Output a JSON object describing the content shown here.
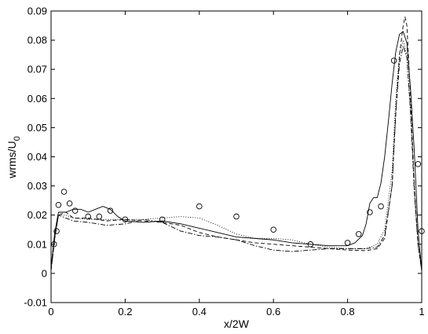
{
  "chart_data": {
    "type": "line",
    "xlabel": "x/2W",
    "ylabel": {
      "main": "wrms/U",
      "subscript": "0"
    },
    "xlim": [
      0,
      1
    ],
    "ylim": [
      -0.01,
      0.09
    ],
    "xticks": [
      0,
      0.2,
      0.4,
      0.6,
      0.8,
      1
    ],
    "xtick_labels": [
      "0",
      "0.2",
      "0.4",
      "0.6",
      "0.8",
      "1"
    ],
    "yticks": [
      -0.01,
      0,
      0.01,
      0.02,
      0.03,
      0.04,
      0.05,
      0.06,
      0.07,
      0.08,
      0.09
    ],
    "ytick_labels": [
      "-0.01",
      "0",
      "0.01",
      "0.02",
      "0.03",
      "0.04",
      "0.05",
      "0.06",
      "0.07",
      "0.08",
      "0.09"
    ],
    "grid": false,
    "legend": "none",
    "series": [
      {
        "style": "solid",
        "x": [
          0,
          0.01,
          0.02,
          0.04,
          0.06,
          0.08,
          0.1,
          0.12,
          0.14,
          0.16,
          0.18,
          0.2,
          0.25,
          0.3,
          0.35,
          0.4,
          0.45,
          0.5,
          0.55,
          0.6,
          0.65,
          0.7,
          0.75,
          0.8,
          0.82,
          0.84,
          0.85,
          0.86,
          0.87,
          0.88,
          0.89,
          0.9,
          0.91,
          0.92,
          0.93,
          0.94,
          0.95,
          0.96,
          0.97,
          0.98,
          0.99,
          1.0
        ],
        "y": [
          0.002,
          0.014,
          0.021,
          0.021,
          0.022,
          0.022,
          0.021,
          0.022,
          0.023,
          0.022,
          0.0195,
          0.018,
          0.0175,
          0.018,
          0.017,
          0.0155,
          0.014,
          0.0125,
          0.012,
          0.0115,
          0.0105,
          0.01,
          0.0095,
          0.0095,
          0.0105,
          0.013,
          0.017,
          0.024,
          0.026,
          0.026,
          0.031,
          0.04,
          0.052,
          0.065,
          0.076,
          0.082,
          0.083,
          0.079,
          0.063,
          0.042,
          0.015,
          0.001
        ]
      },
      {
        "style": "dotted",
        "x": [
          0,
          0.01,
          0.02,
          0.04,
          0.06,
          0.1,
          0.15,
          0.2,
          0.25,
          0.3,
          0.35,
          0.4,
          0.45,
          0.5,
          0.55,
          0.6,
          0.65,
          0.7,
          0.75,
          0.8,
          0.85,
          0.88,
          0.9,
          0.92,
          0.93,
          0.94,
          0.95,
          0.96,
          0.97,
          0.98,
          0.99,
          1.0
        ],
        "y": [
          0.001,
          0.013,
          0.02,
          0.02,
          0.019,
          0.0185,
          0.0185,
          0.0185,
          0.0185,
          0.019,
          0.0195,
          0.019,
          0.0165,
          0.0135,
          0.012,
          0.012,
          0.0115,
          0.01,
          0.009,
          0.0085,
          0.0085,
          0.01,
          0.015,
          0.035,
          0.06,
          0.075,
          0.08,
          0.075,
          0.055,
          0.03,
          0.01,
          0.001
        ]
      },
      {
        "style": "dashed",
        "x": [
          0,
          0.01,
          0.02,
          0.04,
          0.06,
          0.1,
          0.15,
          0.2,
          0.25,
          0.3,
          0.35,
          0.4,
          0.45,
          0.5,
          0.55,
          0.6,
          0.65,
          0.7,
          0.75,
          0.8,
          0.85,
          0.88,
          0.9,
          0.92,
          0.93,
          0.94,
          0.95,
          0.955,
          0.96,
          0.97,
          0.98,
          0.99,
          1.0
        ],
        "y": [
          0.001,
          0.012,
          0.02,
          0.021,
          0.019,
          0.019,
          0.018,
          0.0185,
          0.018,
          0.0175,
          0.0165,
          0.014,
          0.0125,
          0.0115,
          0.0105,
          0.01,
          0.0095,
          0.009,
          0.0085,
          0.008,
          0.0078,
          0.0085,
          0.012,
          0.03,
          0.055,
          0.075,
          0.085,
          0.088,
          0.085,
          0.06,
          0.03,
          0.01,
          0.001
        ]
      },
      {
        "style": "dashdot",
        "x": [
          0,
          0.01,
          0.02,
          0.04,
          0.06,
          0.1,
          0.15,
          0.2,
          0.25,
          0.3,
          0.35,
          0.4,
          0.45,
          0.5,
          0.55,
          0.6,
          0.65,
          0.7,
          0.75,
          0.8,
          0.85,
          0.88,
          0.9,
          0.92,
          0.93,
          0.94,
          0.95,
          0.96,
          0.97,
          0.98,
          0.99,
          1.0
        ],
        "y": [
          0.001,
          0.012,
          0.02,
          0.019,
          0.018,
          0.0175,
          0.0165,
          0.017,
          0.0185,
          0.0175,
          0.0145,
          0.013,
          0.0125,
          0.0115,
          0.0095,
          0.008,
          0.0075,
          0.008,
          0.0085,
          0.0085,
          0.0085,
          0.009,
          0.013,
          0.03,
          0.055,
          0.072,
          0.078,
          0.074,
          0.055,
          0.028,
          0.01,
          0.001
        ]
      },
      {
        "style": "markers-circle",
        "x": [
          0.008,
          0.015,
          0.02,
          0.035,
          0.05,
          0.065,
          0.1,
          0.13,
          0.16,
          0.2,
          0.3,
          0.4,
          0.5,
          0.6,
          0.7,
          0.8,
          0.83,
          0.86,
          0.89,
          0.925,
          0.99,
          1.0
        ],
        "y": [
          0.01,
          0.0145,
          0.0235,
          0.028,
          0.024,
          0.0215,
          0.0195,
          0.0195,
          0.0215,
          0.0185,
          0.0185,
          0.023,
          0.0195,
          0.015,
          0.01,
          0.0105,
          0.0135,
          0.021,
          0.023,
          0.073,
          0.0375,
          0.0145
        ]
      }
    ]
  }
}
